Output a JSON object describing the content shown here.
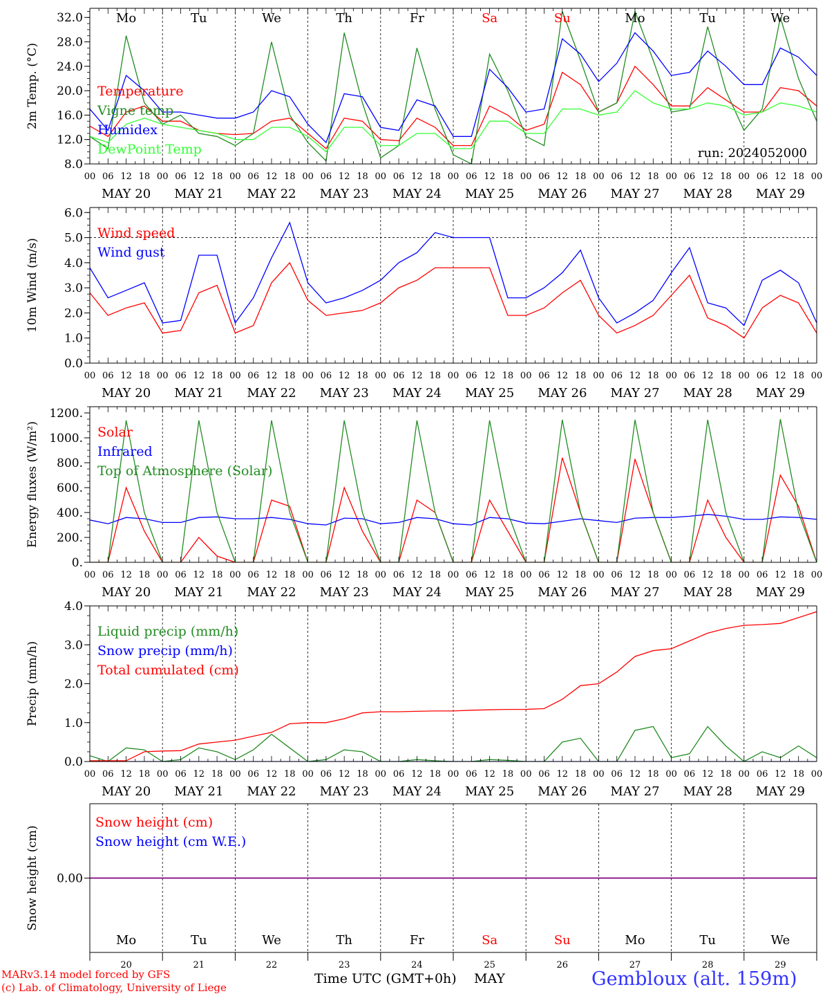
{
  "run": "run: 2024052000",
  "days": [
    {
      "dow": "Mo",
      "date": "MAY 20",
      "day": "20",
      "weekend": false
    },
    {
      "dow": "Tu",
      "date": "MAY 21",
      "day": "21",
      "weekend": false
    },
    {
      "dow": "We",
      "date": "MAY 22",
      "day": "22",
      "weekend": false
    },
    {
      "dow": "Th",
      "date": "MAY 23",
      "day": "23",
      "weekend": false
    },
    {
      "dow": "Fr",
      "date": "MAY 24",
      "day": "24",
      "weekend": false
    },
    {
      "dow": "Sa",
      "date": "MAY 25",
      "day": "25",
      "weekend": true
    },
    {
      "dow": "Su",
      "date": "MAY 26",
      "day": "26",
      "weekend": true
    },
    {
      "dow": "Mo",
      "date": "MAY 27",
      "day": "27",
      "weekend": false
    },
    {
      "dow": "Tu",
      "date": "MAY 28",
      "day": "28",
      "weekend": false
    },
    {
      "dow": "We",
      "date": "MAY 29",
      "day": "29",
      "weekend": false
    }
  ],
  "hour_labels": [
    "00",
    "06",
    "12",
    "18"
  ],
  "footer": {
    "line1": "MARv3.14 model forced by GFS",
    "line2": "(c) Lab. of Climatology, University of Liege",
    "xtitle": "Time UTC (GMT+0h)",
    "month": "MAY",
    "location": "Gembloux (alt. 159m)"
  },
  "colors": {
    "red": "#ff0000",
    "green": "#228b22",
    "blue": "#0000ff",
    "lime": "#33ff33",
    "purple": "#800080",
    "weekend": "#ff0000"
  },
  "chart_data": [
    {
      "type": "line",
      "ylabel": "2m Temp. (°C)",
      "ylim": [
        8,
        33.5
      ],
      "yticks": [
        8.0,
        12.0,
        16.0,
        20.0,
        24.0,
        28.0,
        32.0
      ],
      "tickfmt": 1,
      "dashed": [],
      "x_hours": [
        0,
        6,
        12,
        18,
        24,
        30,
        36,
        42,
        48,
        54,
        60,
        66,
        72,
        78,
        84,
        90,
        96,
        102,
        108,
        114,
        120,
        126,
        132,
        138,
        144,
        150,
        156,
        162,
        168,
        174,
        180,
        186,
        192,
        198,
        204,
        210,
        216,
        222,
        228,
        234,
        240
      ],
      "series": [
        {
          "name": "Temperature",
          "color": "red",
          "values": [
            14.2,
            12.5,
            16.5,
            17.5,
            15.0,
            15.0,
            13.5,
            13.0,
            12.8,
            13.0,
            15.0,
            15.5,
            13.0,
            10.5,
            15.5,
            15.0,
            12.0,
            11.8,
            15.5,
            14.0,
            11.0,
            11.0,
            17.5,
            16.0,
            13.5,
            14.5,
            23.0,
            21.0,
            16.5,
            18.0,
            24.0,
            21.0,
            17.5,
            17.5,
            20.5,
            18.5,
            16.5,
            16.5,
            20.5,
            20.0,
            17.5
          ]
        },
        {
          "name": "Vigne temp",
          "color": "green",
          "values": [
            12.5,
            10.5,
            29.0,
            18.0,
            14.5,
            16.0,
            13.0,
            12.5,
            11.0,
            13.0,
            28.0,
            16.0,
            11.5,
            8.5,
            29.5,
            18.0,
            9.0,
            11.0,
            27.0,
            17.0,
            9.5,
            8.0,
            26.0,
            20.0,
            12.5,
            11.0,
            33.0,
            25.0,
            16.5,
            18.0,
            33.0,
            25.0,
            16.5,
            17.0,
            30.5,
            20.0,
            13.5,
            17.0,
            32.0,
            22.0,
            15.0
          ]
        },
        {
          "name": "Humidex",
          "color": "blue",
          "values": [
            17.0,
            13.5,
            22.5,
            20.0,
            16.5,
            16.5,
            16.0,
            15.5,
            15.5,
            16.5,
            20.0,
            19.0,
            14.5,
            11.5,
            19.5,
            19.0,
            14.0,
            13.5,
            18.5,
            17.5,
            12.5,
            12.5,
            23.5,
            20.5,
            16.5,
            17.0,
            28.5,
            26.0,
            21.5,
            24.5,
            29.5,
            26.5,
            22.5,
            23.0,
            26.5,
            24.0,
            21.0,
            21.0,
            27.0,
            25.5,
            22.5
          ]
        },
        {
          "name": "DewPoint Temp",
          "color": "lime",
          "values": [
            12.5,
            11.5,
            14.5,
            15.5,
            14.5,
            14.0,
            13.5,
            13.0,
            12.0,
            12.0,
            14.0,
            14.0,
            12.5,
            10.0,
            14.0,
            14.0,
            11.0,
            11.0,
            13.0,
            13.0,
            10.5,
            10.5,
            15.0,
            15.0,
            13.0,
            13.0,
            17.0,
            17.0,
            16.0,
            16.5,
            20.0,
            18.0,
            17.0,
            17.0,
            18.0,
            17.5,
            16.0,
            16.5,
            18.0,
            17.5,
            16.5
          ]
        }
      ]
    },
    {
      "type": "line",
      "ylabel": "10m Wind (m/s)",
      "ylim": [
        0,
        6.2
      ],
      "yticks": [
        0.0,
        1.0,
        2.0,
        3.0,
        4.0,
        5.0,
        6.0
      ],
      "tickfmt": 1,
      "dashed": [
        5.0
      ],
      "x_hours": [
        0,
        6,
        12,
        18,
        24,
        30,
        36,
        42,
        48,
        54,
        60,
        66,
        72,
        78,
        84,
        90,
        96,
        102,
        108,
        114,
        120,
        126,
        132,
        138,
        144,
        150,
        156,
        162,
        168,
        174,
        180,
        186,
        192,
        198,
        204,
        210,
        216,
        222,
        228,
        234,
        240
      ],
      "series": [
        {
          "name": "Wind speed",
          "color": "red",
          "values": [
            2.8,
            1.9,
            2.2,
            2.4,
            1.2,
            1.3,
            2.8,
            3.1,
            1.2,
            1.5,
            3.2,
            4.0,
            2.5,
            1.9,
            2.0,
            2.1,
            2.4,
            3.0,
            3.3,
            3.8,
            3.8,
            3.8,
            3.8,
            1.9,
            1.9,
            2.2,
            2.8,
            3.3,
            1.9,
            1.2,
            1.5,
            1.9,
            2.7,
            3.5,
            1.8,
            1.5,
            1.0,
            2.2,
            2.7,
            2.4,
            1.2
          ]
        },
        {
          "name": "Wind gust",
          "color": "blue",
          "values": [
            3.8,
            2.6,
            2.9,
            3.2,
            1.6,
            1.7,
            4.3,
            4.3,
            1.6,
            2.6,
            4.2,
            5.6,
            3.2,
            2.4,
            2.6,
            2.9,
            3.3,
            4.0,
            4.4,
            5.2,
            5.0,
            5.0,
            5.0,
            2.6,
            2.6,
            3.0,
            3.6,
            4.5,
            2.6,
            1.6,
            2.0,
            2.5,
            3.6,
            4.6,
            2.4,
            2.2,
            1.5,
            3.3,
            3.7,
            3.2,
            1.6
          ]
        }
      ]
    },
    {
      "type": "line",
      "ylabel": "Energy fluxes (W/m²)",
      "ylim": [
        0,
        1250
      ],
      "yticks": [
        0,
        200,
        400,
        600,
        800,
        1000,
        1200
      ],
      "tickfmt": "int",
      "dashed": [],
      "x_hours": [
        0,
        6,
        12,
        18,
        24,
        30,
        36,
        42,
        48,
        54,
        60,
        66,
        72,
        78,
        84,
        90,
        96,
        102,
        108,
        114,
        120,
        126,
        132,
        138,
        144,
        150,
        156,
        162,
        168,
        174,
        180,
        186,
        192,
        198,
        204,
        210,
        216,
        222,
        228,
        234,
        240
      ],
      "series": [
        {
          "name": "Solar",
          "color": "red",
          "values": [
            0,
            0,
            600,
            250,
            0,
            0,
            200,
            50,
            0,
            0,
            500,
            450,
            0,
            0,
            600,
            250,
            0,
            0,
            500,
            400,
            0,
            0,
            500,
            250,
            0,
            0,
            840,
            400,
            0,
            0,
            830,
            400,
            0,
            0,
            500,
            200,
            0,
            0,
            700,
            450,
            0
          ]
        },
        {
          "name": "Infrared",
          "color": "blue",
          "values": [
            340,
            310,
            360,
            350,
            320,
            320,
            360,
            365,
            350,
            350,
            360,
            345,
            310,
            300,
            355,
            350,
            310,
            320,
            360,
            350,
            310,
            300,
            360,
            350,
            315,
            310,
            330,
            350,
            335,
            320,
            355,
            360,
            360,
            370,
            385,
            370,
            345,
            345,
            365,
            360,
            345
          ]
        },
        {
          "name": "Top of Atmosphere (Solar)",
          "color": "green",
          "values": [
            0,
            0,
            1140,
            400,
            0,
            0,
            1140,
            400,
            0,
            0,
            1140,
            400,
            0,
            0,
            1140,
            400,
            0,
            0,
            1140,
            400,
            0,
            0,
            1140,
            400,
            0,
            0,
            1145,
            400,
            0,
            0,
            1145,
            400,
            0,
            0,
            1145,
            400,
            0,
            0,
            1150,
            400,
            0
          ]
        }
      ]
    },
    {
      "type": "line",
      "ylabel": "Precip (mm/h)",
      "ylim": [
        0,
        4.0
      ],
      "yticks": [
        0.0,
        1.0,
        2.0,
        3.0,
        4.0
      ],
      "tickfmt": 1,
      "dashed": [],
      "x_hours": [
        0,
        6,
        12,
        18,
        24,
        30,
        36,
        42,
        48,
        54,
        60,
        66,
        72,
        78,
        84,
        90,
        96,
        102,
        108,
        114,
        120,
        126,
        132,
        138,
        144,
        150,
        156,
        162,
        168,
        174,
        180,
        186,
        192,
        198,
        204,
        210,
        216,
        222,
        228,
        234,
        240
      ],
      "series": [
        {
          "name": "Liquid precip (mm/h)",
          "color": "green",
          "values": [
            0.15,
            0.0,
            0.35,
            0.3,
            0.0,
            0.05,
            0.35,
            0.25,
            0.05,
            0.3,
            0.7,
            0.35,
            0.0,
            0.05,
            0.3,
            0.25,
            0.0,
            0.0,
            0.05,
            0.02,
            0.0,
            0.0,
            0.05,
            0.03,
            0.0,
            0.0,
            0.5,
            0.6,
            0.0,
            0.0,
            0.8,
            0.9,
            0.1,
            0.2,
            0.9,
            0.4,
            0.0,
            0.25,
            0.1,
            0.4,
            0.1
          ]
        },
        {
          "name": "Snow precip (mm/h)",
          "color": "blue",
          "values": [
            0,
            0,
            0,
            0,
            0,
            0,
            0,
            0,
            0,
            0,
            0,
            0,
            0,
            0,
            0,
            0,
            0,
            0,
            0,
            0,
            0,
            0,
            0,
            0,
            0,
            0,
            0,
            0,
            0,
            0,
            0,
            0,
            0,
            0,
            0,
            0,
            0,
            0,
            0,
            0,
            0
          ]
        },
        {
          "name": "Total cumulated (cm)",
          "color": "red",
          "values": [
            0.02,
            0.02,
            0.02,
            0.25,
            0.27,
            0.28,
            0.45,
            0.5,
            0.55,
            0.65,
            0.75,
            0.97,
            1.0,
            1.0,
            1.1,
            1.25,
            1.28,
            1.28,
            1.29,
            1.3,
            1.3,
            1.32,
            1.33,
            1.34,
            1.34,
            1.36,
            1.6,
            1.95,
            2.0,
            2.3,
            2.7,
            2.85,
            2.9,
            3.1,
            3.3,
            3.42,
            3.5,
            3.52,
            3.55,
            3.7,
            3.85
          ]
        }
      ]
    },
    {
      "type": "line",
      "ylabel": "Snow height (cm)",
      "ylim": [
        -1,
        1
      ],
      "yticks": [
        0.0
      ],
      "tickfmt": 2,
      "dashed": [],
      "x_hours": [
        0,
        240
      ],
      "series": [
        {
          "name": "Snow height (cm)",
          "color": "red",
          "values": [
            0,
            0
          ]
        },
        {
          "name": "Snow height (cm W.E.)",
          "color": "blue",
          "values": [
            0,
            0
          ]
        }
      ]
    }
  ]
}
